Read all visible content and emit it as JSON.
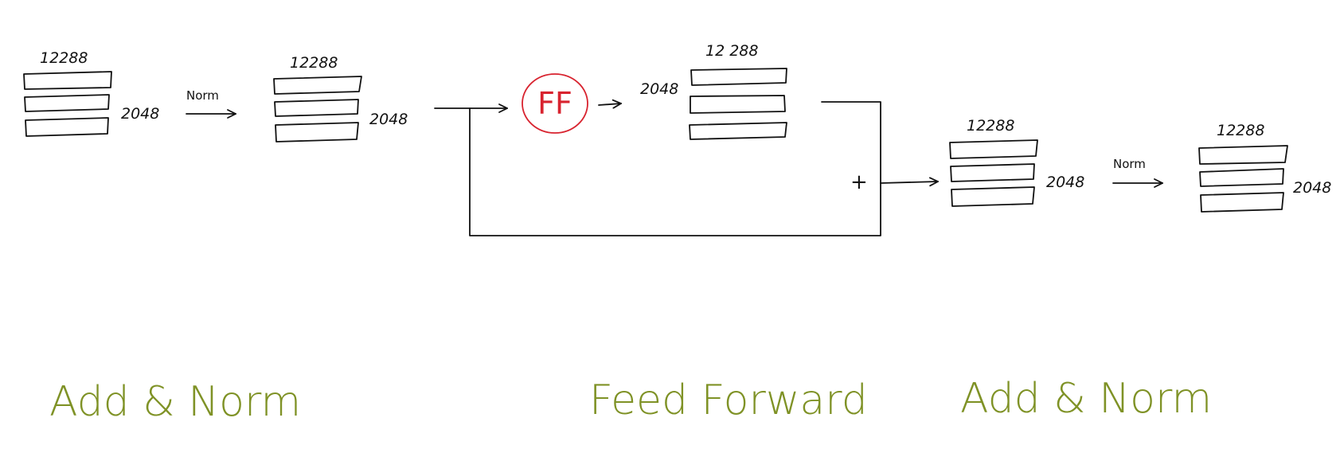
{
  "colors": {
    "ink": "#111111",
    "ff_circle": "#d8232f",
    "section_label": "#7f9226"
  },
  "blocks": [
    {
      "top_label": "12288",
      "side_label": "2048"
    },
    {
      "top_label": "12288",
      "side_label": "2048"
    },
    {
      "top_label": "12 288",
      "side_label": "2048"
    },
    {
      "top_label": "12288",
      "side_label": "2048"
    },
    {
      "top_label": "12288",
      "side_label": "2048"
    }
  ],
  "arrows": {
    "norm_1": "Norm",
    "norm_2": "Norm"
  },
  "ff_node": "FF",
  "plus_sign": "+",
  "sections": {
    "add_norm_1": "Add & Norm",
    "feed_forward": "Feed Forward",
    "add_norm_2": "Add & Norm"
  }
}
